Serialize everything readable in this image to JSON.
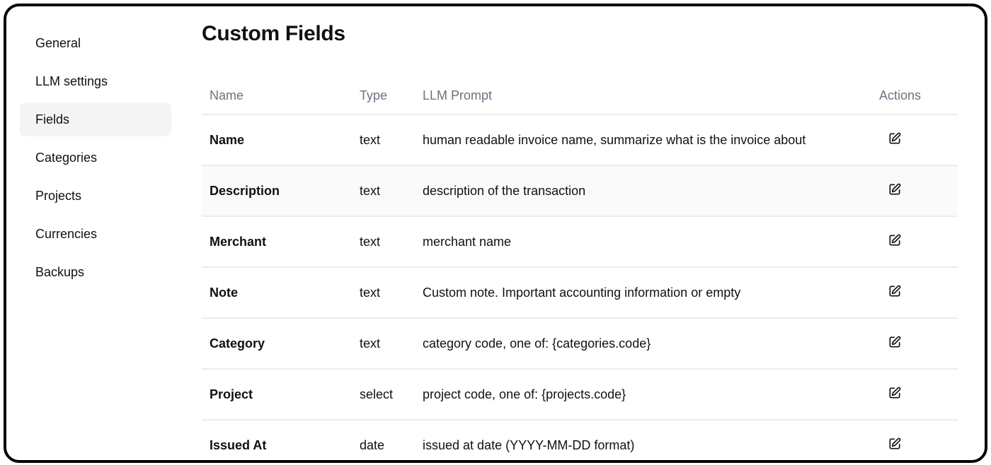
{
  "sidebar": {
    "items": [
      {
        "label": "General",
        "active": false
      },
      {
        "label": "LLM settings",
        "active": false
      },
      {
        "label": "Fields",
        "active": true
      },
      {
        "label": "Categories",
        "active": false
      },
      {
        "label": "Projects",
        "active": false
      },
      {
        "label": "Currencies",
        "active": false
      },
      {
        "label": "Backups",
        "active": false
      }
    ]
  },
  "main": {
    "title": "Custom Fields",
    "table": {
      "headers": {
        "name": "Name",
        "type": "Type",
        "prompt": "LLM Prompt",
        "actions": "Actions"
      },
      "rows": [
        {
          "name": "Name",
          "type": "text",
          "prompt": "human readable invoice name, summarize what is the invoice about",
          "action_icon": "edit-icon"
        },
        {
          "name": "Description",
          "type": "text",
          "prompt": "description of the transaction",
          "action_icon": "edit-icon"
        },
        {
          "name": "Merchant",
          "type": "text",
          "prompt": "merchant name",
          "action_icon": "edit-icon"
        },
        {
          "name": "Note",
          "type": "text",
          "prompt": "Custom note. Important accounting information or empty",
          "action_icon": "edit-icon"
        },
        {
          "name": "Category",
          "type": "text",
          "prompt": "category code, one of: {categories.code}",
          "action_icon": "edit-icon"
        },
        {
          "name": "Project",
          "type": "select",
          "prompt": "project code, one of: {projects.code}",
          "action_icon": "edit-icon"
        },
        {
          "name": "Issued At",
          "type": "date",
          "prompt": "issued at date (YYYY-MM-DD format)",
          "action_icon": "edit-icon"
        }
      ]
    }
  },
  "colors": {
    "active_bg": "#f4f4f5",
    "header_text": "#6b7280",
    "border": "#ececee"
  }
}
